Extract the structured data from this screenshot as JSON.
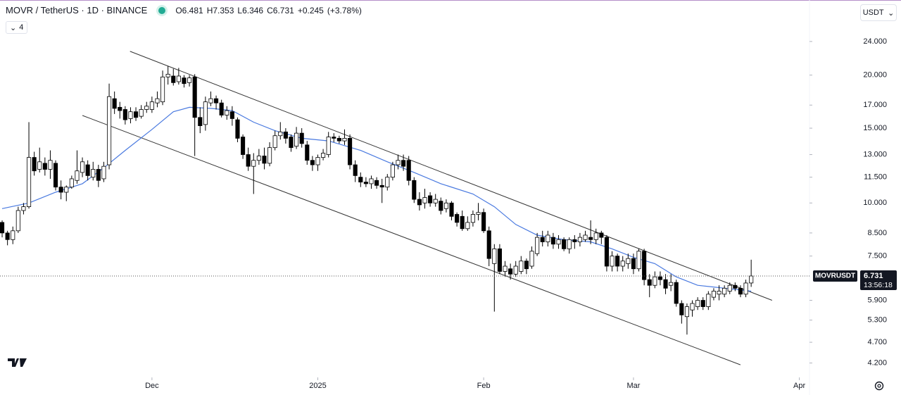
{
  "header": {
    "symbol": "MOVR / TetherUS · 1D · BINANCE",
    "legend": [
      {
        "label": "O",
        "value": 6.481
      },
      {
        "label": "H",
        "value": 7.353
      },
      {
        "label": "L",
        "value": 6.346
      },
      {
        "label": "C",
        "value": 6.731
      }
    ],
    "change": {
      "value": 0.245,
      "label": "+0.245"
    },
    "change_pct": {
      "value": 3.78,
      "label": "(+3.78%)"
    },
    "indicators": 4,
    "currency": "USDT"
  },
  "chart_data": {
    "type": "candlestick",
    "log_scale": true,
    "colors": {
      "up": "#ffffff",
      "down": "#000000",
      "border": "#000000",
      "ma": "#4a7ae0",
      "trendline": "#333333"
    },
    "xlim": [
      -0.4,
      150.9
    ],
    "xticks": [
      {
        "value": 28,
        "label": "Dec"
      },
      {
        "value": 59,
        "label": "2025"
      },
      {
        "value": 90,
        "label": "Feb"
      },
      {
        "value": 118,
        "label": "Mar"
      },
      {
        "value": 149,
        "label": "Apr"
      }
    ],
    "ylim": [
      3.885,
      30.05
    ],
    "yticks": [
      {
        "value": 24,
        "label": "24.000"
      },
      {
        "value": 20,
        "label": "20.000"
      },
      {
        "value": 17,
        "label": "17.000"
      },
      {
        "value": 15,
        "label": "15.000"
      },
      {
        "value": 13,
        "label": "13.000"
      },
      {
        "value": 11.5,
        "label": "11.500"
      },
      {
        "value": 10,
        "label": "10.000"
      },
      {
        "value": 8.5,
        "label": "8.500"
      },
      {
        "value": 7.5,
        "label": "7.500"
      },
      {
        "value": 5.9,
        "label": "5.900"
      },
      {
        "value": 5.3,
        "label": "5.300"
      },
      {
        "value": 4.7,
        "label": "4.700"
      },
      {
        "value": 4.2,
        "label": "4.200"
      }
    ],
    "open": [
      9.0,
      8.5,
      8.2,
      8.6,
      9.6,
      9.8,
      12.8,
      12.0,
      12.4,
      12.0,
      12.4,
      10.9,
      10.6,
      10.9,
      11.3,
      11.8,
      12.3,
      11.5,
      12.0,
      11.4,
      12.3,
      17.6,
      16.8,
      16.6,
      15.8,
      16.4,
      16.0,
      16.6,
      16.6,
      17.2,
      17.3,
      19.8,
      19.9,
      19.3,
      19.7,
      19.2,
      19.8,
      15.9,
      15.3,
      17.2,
      17.6,
      17.2,
      16.1,
      16.4,
      15.7,
      14.3,
      13.0,
      12.2,
      12.6,
      12.9,
      12.4,
      13.5,
      14.4,
      14.7,
      14.3,
      13.6,
      14.6,
      13.7,
      12.6,
      12.3,
      12.8,
      13.0,
      14.3,
      14.2,
      14.0,
      14.2,
      12.3,
      11.5,
      11.2,
      11.1,
      11.3,
      11.0,
      10.9,
      11.5,
      12.3,
      12.6,
      12.6,
      11.3,
      10.2,
      10.0,
      10.4,
      10.0,
      10.1,
      9.7,
      10.0,
      9.4,
      9.3,
      8.7,
      9.0,
      9.4,
      9.5,
      8.6,
      7.2,
      7.8,
      6.9,
      7.0,
      6.8,
      6.9,
      7.3,
      7.1,
      7.6,
      8.3,
      8.1,
      8.3,
      8.0,
      8.2,
      7.8,
      8.2,
      8.1,
      8.2,
      8.3,
      8.2,
      8.5,
      8.3,
      7.1,
      7.5,
      7.1,
      7.2,
      7.4,
      7.0,
      7.7,
      6.6,
      6.4,
      6.7,
      6.6,
      6.4,
      6.5,
      5.8,
      5.4,
      5.6,
      5.7,
      5.9,
      5.7,
      6.0,
      6.1,
      6.1,
      6.2,
      6.4,
      6.3,
      6.1,
      6.481
    ],
    "high": [
      9.1,
      8.6,
      8.8,
      9.8,
      10.0,
      15.5,
      13.2,
      13.5,
      12.8,
      13.3,
      12.6,
      11.3,
      11.0,
      11.6,
      13.3,
      12.8,
      12.6,
      12.5,
      12.3,
      12.5,
      19.1,
      18.3,
      17.3,
      16.9,
      16.8,
      16.8,
      17.0,
      17.3,
      17.8,
      18.3,
      20.5,
      21.0,
      20.7,
      20.8,
      20.0,
      20.0,
      20.1,
      16.8,
      17.8,
      18.3,
      17.9,
      17.5,
      16.9,
      16.9,
      15.9,
      14.5,
      13.5,
      13.1,
      13.4,
      13.5,
      13.9,
      14.8,
      15.5,
      15.0,
      14.5,
      15.1,
      15.0,
      14.0,
      12.9,
      13.0,
      13.4,
      14.7,
      14.6,
      14.4,
      14.9,
      14.5,
      12.6,
      11.8,
      11.5,
      11.6,
      11.5,
      11.4,
      11.7,
      12.5,
      13.0,
      13.0,
      12.9,
      11.5,
      10.6,
      10.8,
      10.6,
      10.5,
      10.3,
      10.2,
      10.1,
      9.5,
      9.6,
      9.3,
      9.6,
      10.0,
      9.7,
      8.8,
      8.0,
      8.0,
      7.3,
      7.2,
      7.3,
      7.5,
      7.4,
      7.9,
      8.5,
      8.6,
      8.6,
      8.5,
      8.4,
      8.3,
      8.3,
      8.4,
      8.5,
      8.6,
      9.1,
      8.7,
      8.6,
      8.4,
      7.7,
      7.6,
      7.5,
      7.6,
      7.6,
      7.8,
      7.8,
      6.8,
      6.9,
      6.9,
      6.8,
      6.8,
      6.6,
      5.9,
      5.8,
      5.9,
      6.0,
      6.0,
      6.2,
      6.3,
      6.4,
      6.4,
      6.5,
      6.5,
      6.4,
      6.6,
      7.353
    ],
    "low": [
      8.3,
      7.95,
      8.0,
      8.5,
      9.4,
      9.7,
      11.6,
      11.8,
      11.6,
      11.4,
      10.7,
      10.2,
      10.1,
      10.8,
      11.1,
      11.5,
      11.3,
      11.3,
      10.9,
      11.2,
      12.0,
      16.2,
      15.8,
      15.3,
      15.4,
      15.6,
      15.8,
      16.3,
      16.3,
      16.8,
      17.0,
      19.0,
      18.9,
      19.0,
      18.7,
      18.8,
      12.9,
      14.6,
      14.8,
      16.9,
      16.6,
      15.9,
      15.7,
      15.2,
      13.9,
      12.7,
      11.9,
      10.5,
      12.3,
      12.0,
      12.2,
      13.3,
      14.1,
      13.8,
      13.2,
      13.4,
      13.5,
      12.3,
      11.9,
      11.9,
      12.6,
      12.8,
      13.9,
      13.8,
      13.7,
      12.0,
      11.2,
      10.9,
      10.9,
      10.8,
      10.8,
      10.0,
      10.7,
      11.3,
      12.0,
      11.9,
      11.0,
      10.0,
      9.6,
      9.7,
      9.8,
      9.8,
      9.4,
      9.5,
      9.1,
      8.8,
      8.6,
      8.6,
      8.8,
      9.1,
      8.5,
      7.1,
      5.55,
      6.8,
      6.7,
      6.6,
      6.7,
      6.8,
      6.8,
      7.0,
      7.5,
      7.9,
      7.9,
      7.8,
      7.8,
      7.7,
      7.6,
      7.8,
      7.9,
      8.1,
      8.0,
      8.0,
      8.0,
      6.9,
      6.9,
      6.9,
      6.9,
      7.0,
      6.8,
      6.9,
      6.4,
      6.0,
      6.3,
      6.4,
      6.1,
      6.2,
      5.7,
      5.2,
      4.9,
      5.4,
      5.6,
      5.6,
      5.6,
      5.9,
      5.9,
      6.0,
      6.1,
      6.2,
      6.0,
      6.0,
      6.346
    ],
    "close": [
      8.5,
      8.2,
      8.6,
      9.6,
      9.8,
      12.8,
      11.9,
      12.5,
      12.0,
      12.6,
      10.9,
      10.6,
      10.9,
      11.4,
      11.9,
      12.5,
      11.6,
      12.0,
      11.3,
      12.2,
      17.8,
      16.7,
      16.5,
      15.7,
      16.4,
      15.9,
      16.6,
      16.9,
      17.3,
      17.6,
      19.8,
      20.1,
      19.2,
      19.9,
      19.1,
      19.7,
      15.9,
      15.2,
      17.3,
      17.6,
      17.2,
      16.1,
      16.5,
      15.8,
      14.2,
      13.0,
      12.2,
      12.6,
      12.9,
      12.4,
      13.5,
      14.4,
      14.7,
      14.2,
      13.5,
      14.6,
      13.8,
      12.6,
      12.3,
      12.8,
      13.1,
      14.3,
      14.2,
      14.0,
      14.2,
      12.3,
      11.6,
      11.2,
      11.1,
      11.4,
      11.0,
      10.9,
      11.5,
      12.3,
      12.6,
      12.2,
      11.3,
      10.2,
      9.9,
      10.3,
      10.0,
      10.2,
      9.6,
      10.0,
      9.3,
      9.0,
      8.7,
      9.0,
      9.4,
      9.5,
      8.6,
      7.4,
      7.8,
      6.9,
      7.1,
      6.8,
      7.1,
      7.3,
      7.0,
      7.7,
      8.3,
      8.1,
      8.4,
      8.0,
      8.2,
      7.8,
      8.2,
      8.1,
      8.3,
      8.4,
      8.2,
      8.5,
      8.3,
      7.1,
      7.5,
      7.1,
      7.3,
      7.4,
      7.0,
      7.7,
      6.6,
      6.4,
      6.7,
      6.6,
      6.3,
      6.5,
      5.8,
      5.45,
      5.7,
      5.8,
      5.9,
      5.7,
      6.1,
      6.2,
      6.2,
      6.3,
      6.4,
      6.3,
      6.1,
      6.48,
      6.731
    ],
    "ma": {
      "x": [
        0,
        5,
        10,
        15,
        19,
        23,
        28,
        32,
        35,
        39,
        43,
        47,
        51,
        56,
        61,
        67,
        72,
        77,
        82,
        88,
        92,
        96,
        100,
        105,
        110,
        114,
        118,
        122,
        126,
        130,
        135,
        140
      ],
      "values": [
        9.7,
        10.0,
        10.6,
        11.1,
        12.1,
        13.3,
        14.9,
        16.4,
        16.8,
        16.7,
        16.5,
        15.5,
        14.8,
        14.2,
        14.0,
        13.3,
        12.5,
        11.8,
        11.1,
        10.5,
        9.8,
        8.9,
        8.4,
        8.2,
        8.1,
        7.8,
        7.45,
        7.2,
        6.7,
        6.4,
        6.3,
        6.2
      ]
    },
    "trendlines": [
      {
        "x": [
          23.9,
          143.9
        ],
        "values": [
          22.75,
          5.9
        ]
      },
      {
        "x": [
          15,
          138
        ],
        "values": [
          16.07,
          4.16
        ]
      }
    ],
    "last_price": {
      "symbol": "MOVRUSDT",
      "value": 6.731,
      "countdown": "13:56:18"
    }
  }
}
